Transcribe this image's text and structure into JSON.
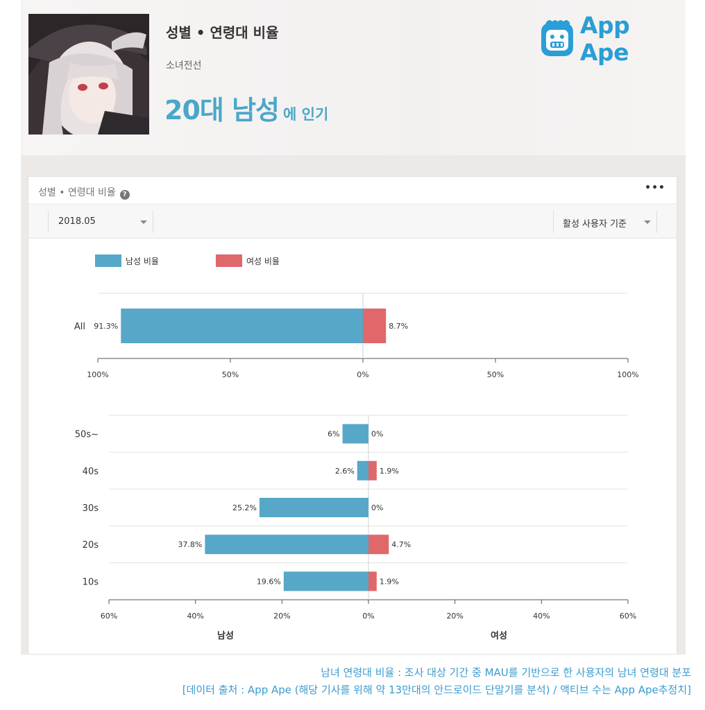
{
  "header": {
    "title": "성별 • 연령대 비율",
    "app_name": "소녀전선",
    "headline": "20대 남성",
    "headline_suffix": "에 인기"
  },
  "brand": {
    "name": "App Ape",
    "icon": "app-ape-logo-icon",
    "color": "#2a9ed6"
  },
  "card": {
    "title": "성별 • 연령대 비율",
    "help_icon": "help-icon",
    "more_label": "•••",
    "month_select": "2018.05",
    "basis_select": "활성 사용자 기준"
  },
  "legend": {
    "male": "남성 비율",
    "female": "여성 비율"
  },
  "colors": {
    "male": "#57a7c8",
    "female": "#e0676a",
    "accent": "#4aa7c9"
  },
  "chart_data": [
    {
      "type": "bar",
      "orientation": "horizontal-diverging",
      "categories": [
        "All"
      ],
      "series": [
        {
          "name": "남성 비율",
          "values": [
            91.3
          ],
          "labels": [
            "91.3%"
          ]
        },
        {
          "name": "여성 비율",
          "values": [
            8.7
          ],
          "labels": [
            "8.7%"
          ]
        }
      ],
      "xlim": [
        -100,
        100
      ],
      "xticks": [
        "100%",
        "50%",
        "0%",
        "50%",
        "100%"
      ],
      "grid": true
    },
    {
      "type": "bar",
      "orientation": "horizontal-diverging",
      "categories": [
        "50s~",
        "40s",
        "30s",
        "20s",
        "10s"
      ],
      "series": [
        {
          "name": "남성 비율",
          "values": [
            6,
            2.6,
            25.2,
            37.8,
            19.6
          ],
          "labels": [
            "6%",
            "2.6%",
            "25.2%",
            "37.8%",
            "19.6%"
          ]
        },
        {
          "name": "여성 비율",
          "values": [
            0,
            1.9,
            0,
            4.7,
            1.9
          ],
          "labels": [
            "0%",
            "1.9%",
            "0%",
            "4.7%",
            "1.9%"
          ]
        }
      ],
      "xlim": [
        -60,
        60
      ],
      "xticks": [
        "60%",
        "40%",
        "20%",
        "0%",
        "20%",
        "40%",
        "60%"
      ],
      "xlabel_left": "남성",
      "xlabel_right": "여성",
      "grid": true
    }
  ],
  "footer": {
    "line1": "남녀 연령대 비율 : 조사 대상 기간 중 MAU를 기반으로 한 사용자의 남녀 연령대 분포",
    "line2": "[데이터 출처 : App Ape (해당 기사를 위해 약 13만대의 안드로이드 단말기를 분석) / 액티브 수는 App Ape추정치]"
  }
}
